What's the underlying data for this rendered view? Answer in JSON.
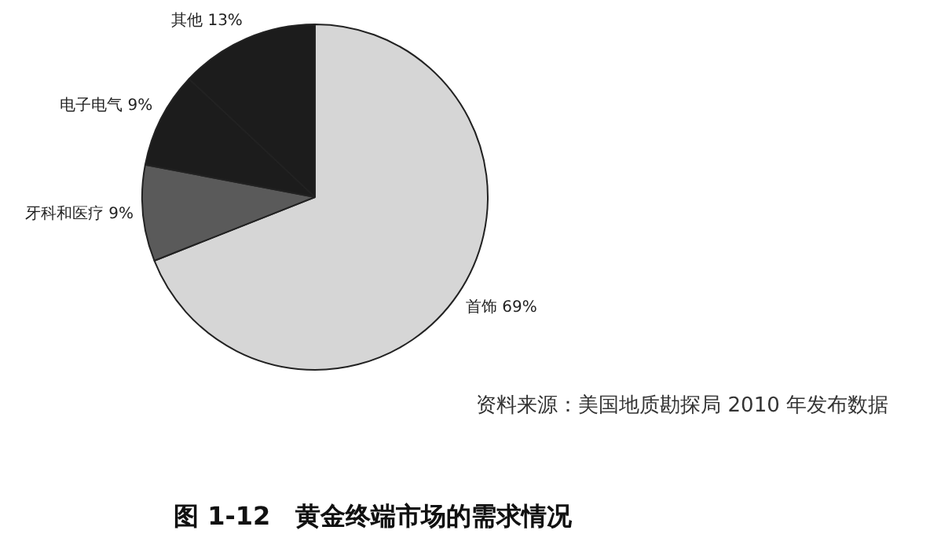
{
  "chart_data": {
    "type": "pie",
    "title": "图 1-12　黄金终端市场的需求情况",
    "categories": [
      "首饰",
      "牙科和医疗",
      "电子电气",
      "其他"
    ],
    "values": [
      69,
      9,
      9,
      13
    ],
    "colors": [
      "#d6d6d6",
      "#5a5a5a",
      "#1c1c1c",
      "#1c1c1c"
    ],
    "value_labels": [
      "69%",
      "9%",
      "9%",
      "13%"
    ],
    "annotations": [
      "资料来源：美国地质勘探局 2010 年发布数据"
    ]
  }
}
